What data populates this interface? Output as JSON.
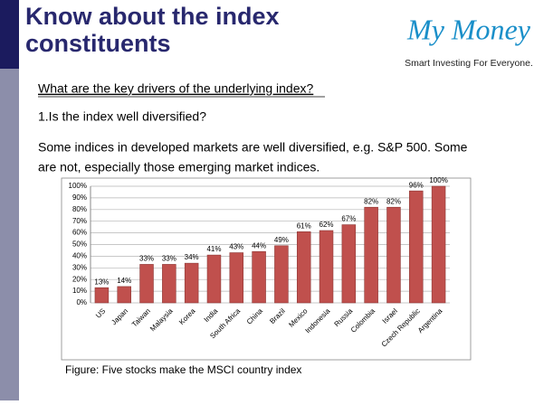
{
  "slide": {
    "title_lines": [
      "Know about the index",
      "constituents"
    ],
    "logo": "My Money",
    "tagline": "Smart Investing For Everyone.",
    "question": "What are the key drivers of the underlying index?",
    "point": "1.Is the index well diversified?",
    "body_lines": [
      "Some indices in developed markets are well diversified, e.g. S&P 500. Some",
      "are not, especially those emerging market indices."
    ],
    "caption": "Figure: Five stocks make the MSCI country index"
  },
  "chart_data": {
    "type": "bar",
    "categories": [
      "US",
      "Japan",
      "Taiwan",
      "Malaysia",
      "Korea",
      "India",
      "South Africa",
      "China",
      "Brazil",
      "Mexico",
      "Indonesia",
      "Russia",
      "Colombia",
      "Israel",
      "Czech Republic",
      "Argentina"
    ],
    "values": [
      13,
      14,
      33,
      33,
      34,
      41,
      43,
      44,
      49,
      61,
      62,
      67,
      82,
      82,
      96,
      100
    ],
    "value_labels": [
      "13%",
      "14%",
      "33%",
      "33%",
      "34%",
      "41%",
      "43%",
      "44%",
      "49%",
      "61%",
      "62%",
      "67%",
      "82%",
      "82%",
      "96%",
      "100%"
    ],
    "color": "#c0504d",
    "ylim": [
      0,
      100
    ],
    "yticks": [
      {
        "value": 0,
        "label": "0%"
      },
      {
        "value": 10,
        "label": "10%"
      },
      {
        "value": 20,
        "label": "20%"
      },
      {
        "value": 30,
        "label": "30%"
      },
      {
        "value": 40,
        "label": "40%"
      },
      {
        "value": 50,
        "label": "50%"
      },
      {
        "value": 60,
        "label": "60%"
      },
      {
        "value": 70,
        "label": "70%"
      },
      {
        "value": 80,
        "label": "80%"
      },
      {
        "value": 90,
        "label": "90%"
      },
      {
        "value": 100,
        "label": "100%"
      }
    ],
    "grid": true
  }
}
